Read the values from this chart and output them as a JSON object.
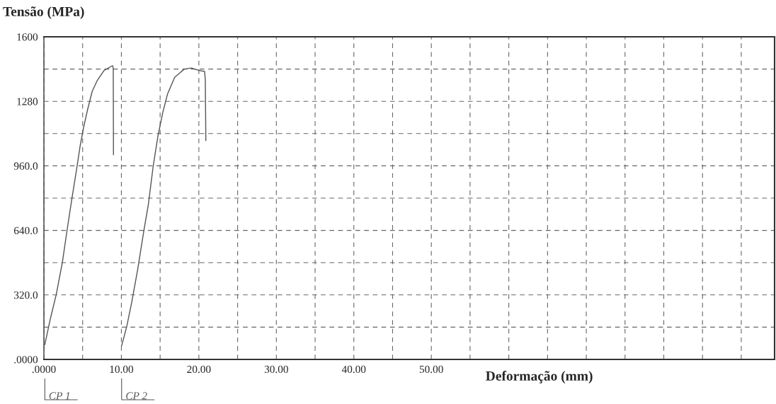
{
  "chart_data": {
    "type": "line",
    "ylabel": "Tensão (MPa)",
    "xlabel": "Deformação (mm)",
    "xlim": [
      0,
      94.3
    ],
    "ylim": [
      0,
      1600
    ],
    "xticks": [
      {
        "value": 0,
        "label": ".0000"
      },
      {
        "value": 5,
        "label": null
      },
      {
        "value": 10,
        "label": "10.00"
      },
      {
        "value": 15,
        "label": null
      },
      {
        "value": 20,
        "label": "20.00"
      },
      {
        "value": 25,
        "label": null
      },
      {
        "value": 30,
        "label": "30.00"
      },
      {
        "value": 35,
        "label": null
      },
      {
        "value": 40,
        "label": "40.00"
      },
      {
        "value": 45,
        "label": null
      },
      {
        "value": 50,
        "label": "50.00"
      },
      {
        "value": 55,
        "label": null
      },
      {
        "value": 60,
        "label": null
      },
      {
        "value": 65,
        "label": null
      },
      {
        "value": 70,
        "label": null
      },
      {
        "value": 75,
        "label": null
      },
      {
        "value": 80,
        "label": null
      },
      {
        "value": 85,
        "label": null
      },
      {
        "value": 90,
        "label": null
      }
    ],
    "yticks": [
      {
        "value": 0,
        "label": ".0000"
      },
      {
        "value": 160,
        "label": null
      },
      {
        "value": 320,
        "label": "320.0"
      },
      {
        "value": 480,
        "label": null
      },
      {
        "value": 640,
        "label": "640.0"
      },
      {
        "value": 800,
        "label": null
      },
      {
        "value": 960,
        "label": "960.0"
      },
      {
        "value": 1120,
        "label": null
      },
      {
        "value": 1280,
        "label": "1280"
      },
      {
        "value": 1440,
        "label": null
      },
      {
        "value": 1600,
        "label": "1600"
      }
    ],
    "annotations": [
      "CP 1",
      "CP 2"
    ],
    "grid": true,
    "line_style": "solid",
    "marker": "none",
    "series": [
      {
        "color": "#555555",
        "x": [
          0.12,
          0.83,
          1.6,
          2.38,
          3.0,
          3.6,
          4.23,
          4.69,
          5.15,
          5.62,
          6.23,
          6.85,
          7.78,
          8.86,
          8.95,
          8.98
        ],
        "values": [
          73,
          201,
          323,
          480,
          643,
          794,
          945,
          1062,
          1155,
          1236,
          1329,
          1381,
          1434,
          1457,
          1445,
          1015
        ]
      },
      {
        "color": "#555555",
        "x": [
          10.03,
          10.71,
          11.33,
          12.1,
          12.87,
          13.49,
          14.1,
          14.72,
          15.34,
          15.96,
          16.88,
          18.12,
          19.04,
          19.97,
          20.74,
          20.83,
          20.9
        ],
        "values": [
          67,
          166,
          283,
          445,
          631,
          771,
          957,
          1108,
          1224,
          1317,
          1399,
          1440,
          1445,
          1434,
          1428,
          1387,
          1085
        ]
      }
    ]
  }
}
